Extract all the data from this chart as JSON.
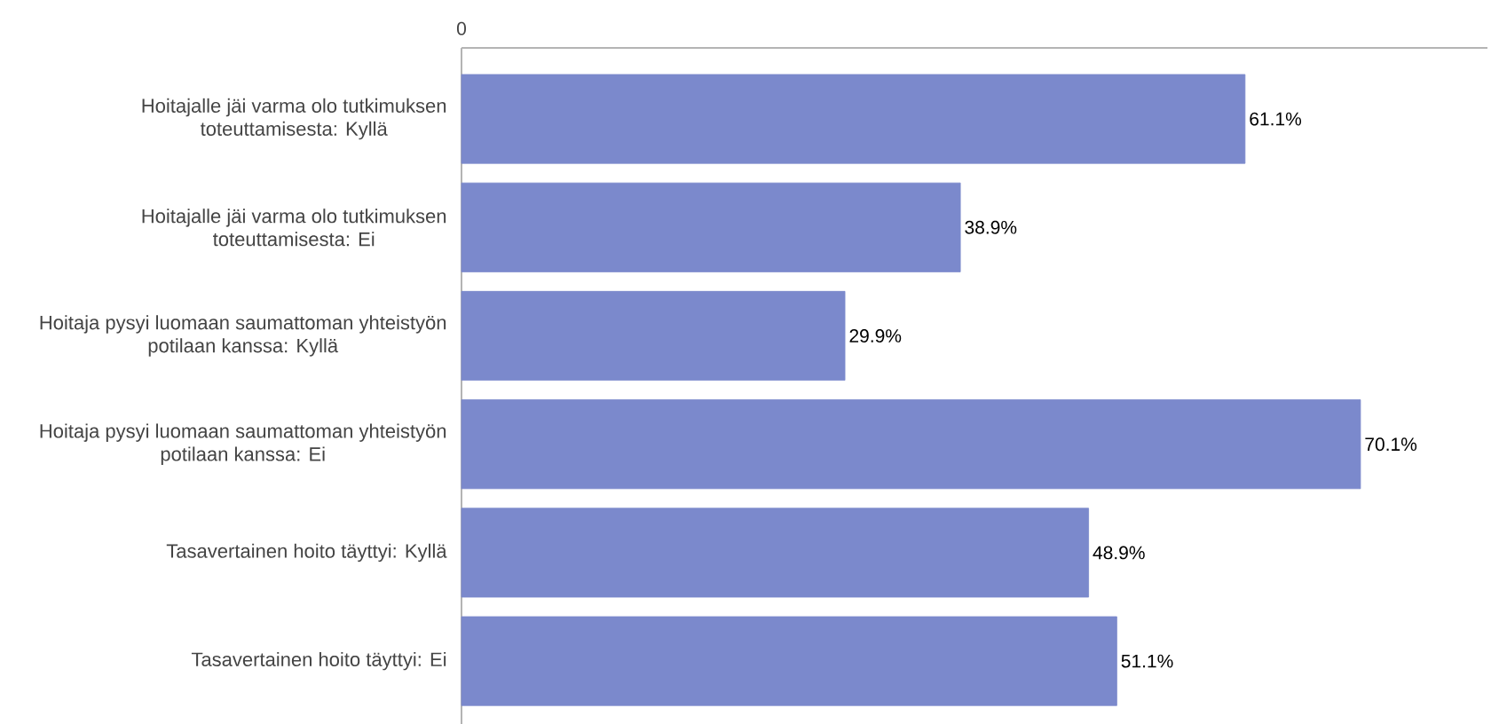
{
  "chart_data": {
    "type": "bar",
    "orientation": "horizontal",
    "categories": [
      "Hoitajalle jäi varma olo tutkimuksen toteuttamisesta: Kyllä",
      "Hoitajalle jäi varma olo tutkimuksen toteuttamisesta: Ei",
      "Hoitaja pysyi luomaan saumattoman yhteistyön potilaan kanssa: Kyllä",
      "Hoitaja pysyi luomaan saumattoman yhteistyön potilaan kanssa: Ei",
      "Tasavertainen hoito täyttyi: Kyllä",
      "Tasavertainen hoito täyttyi: Ei"
    ],
    "values": [
      61.1,
      38.9,
      29.9,
      70.1,
      48.9,
      51.1
    ],
    "value_labels": [
      "61.1%",
      "38.9%",
      "29.9%",
      "70.1%",
      "48.9%",
      "51.1%"
    ],
    "color": "#7b89cc",
    "xlim": [
      0,
      80
    ],
    "annotations": [
      "0"
    ]
  }
}
